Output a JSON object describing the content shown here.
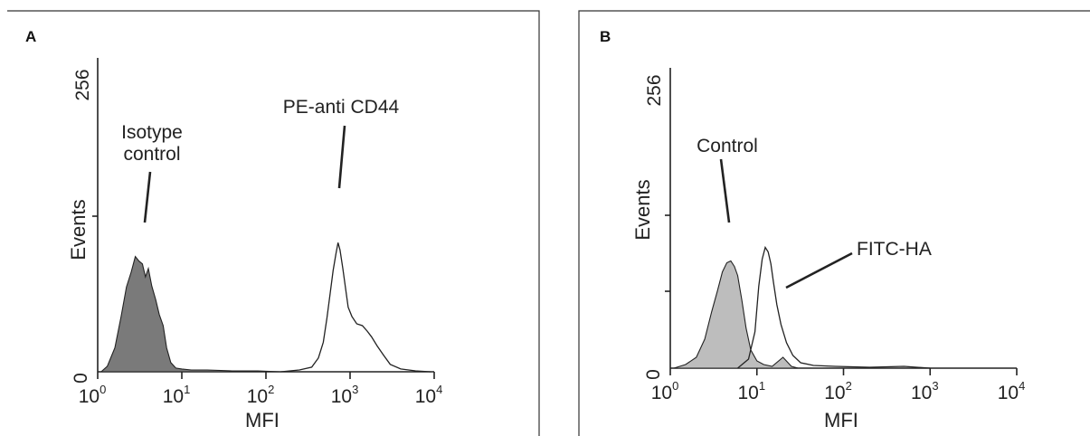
{
  "chart_data": [
    {
      "type": "area",
      "panel": "A",
      "xlabel": "MFI",
      "ylabel": "Events",
      "xscale": "log",
      "xlim": [
        1,
        10000
      ],
      "ylim": [
        0,
        256
      ],
      "ytick_labels": [
        "0",
        "256"
      ],
      "xtick_labels": [
        {
          "base": "10",
          "exp": "0",
          "value": 1
        },
        {
          "base": "10",
          "exp": "1",
          "value": 10
        },
        {
          "base": "10",
          "exp": "2",
          "value": 100
        },
        {
          "base": "10",
          "exp": "3",
          "value": 1000
        },
        {
          "base": "10",
          "exp": "4",
          "value": 10000
        }
      ],
      "series": [
        {
          "name": "Isotype control",
          "fill": "#7a7a7a",
          "filled": true,
          "x": [
            1.1,
            1.3,
            1.6,
            1.9,
            2.2,
            2.5,
            2.8,
            3.1,
            3.4,
            3.7,
            4.0,
            4.4,
            4.9,
            5.4,
            6.0,
            6.6,
            7.4,
            8.5,
            10,
            13,
            20,
            40,
            80,
            150
          ],
          "y": [
            0,
            6,
            26,
            60,
            92,
            108,
            125,
            120,
            117,
            103,
            112,
            93,
            78,
            62,
            50,
            26,
            10,
            4,
            3,
            2,
            2,
            1,
            1,
            0
          ]
        },
        {
          "name": "PE-anti CD44",
          "fill": "none",
          "filled": false,
          "x": [
            150,
            250,
            350,
            420,
            480,
            530,
            580,
            630,
            680,
            720,
            760,
            820,
            880,
            950,
            1050,
            1200,
            1400,
            1600,
            1800,
            2100,
            2500,
            3000,
            4000,
            6000,
            9000
          ],
          "y": [
            0,
            2,
            5,
            15,
            32,
            58,
            85,
            110,
            128,
            140,
            132,
            112,
            92,
            70,
            60,
            52,
            50,
            44,
            38,
            28,
            18,
            8,
            3,
            1,
            0
          ]
        }
      ],
      "annotations": [
        {
          "lines": [
            "Isotype",
            "control"
          ],
          "target": "Isotype control"
        },
        {
          "lines": [
            "PE-anti CD44"
          ],
          "target": "PE-anti CD44"
        }
      ]
    },
    {
      "type": "area",
      "panel": "B",
      "xlabel": "MFI",
      "ylabel": "Events",
      "xscale": "log",
      "xlim": [
        1,
        10000
      ],
      "ylim": [
        0,
        256
      ],
      "ytick_labels": [
        "0",
        "256"
      ],
      "xtick_labels": [
        {
          "base": "10",
          "exp": "0",
          "value": 1
        },
        {
          "base": "10",
          "exp": "1",
          "value": 10
        },
        {
          "base": "10",
          "exp": "2",
          "value": 100
        },
        {
          "base": "10",
          "exp": "3",
          "value": 1000
        },
        {
          "base": "10",
          "exp": "4",
          "value": 10000
        }
      ],
      "series": [
        {
          "name": "Control",
          "fill": "#bdbdbd",
          "filled": true,
          "x": [
            1.1,
            1.5,
            2.0,
            2.5,
            3.0,
            3.5,
            4.0,
            4.5,
            5.0,
            5.5,
            6.0,
            6.7,
            7.5,
            8.5,
            10,
            12,
            15,
            20,
            25,
            30
          ],
          "y": [
            0,
            4,
            12,
            32,
            62,
            85,
            106,
            116,
            118,
            112,
            102,
            75,
            44,
            20,
            8,
            4,
            2,
            12,
            2,
            0
          ]
        },
        {
          "name": "FITC-HA",
          "fill": "none",
          "filled": false,
          "x": [
            6,
            8,
            9.5,
            10.5,
            11.5,
            12.5,
            13.5,
            14.5,
            15.5,
            17,
            19,
            22,
            26,
            32,
            45,
            80,
            200,
            500,
            1000
          ],
          "y": [
            0,
            10,
            40,
            90,
            120,
            133,
            128,
            115,
            95,
            70,
            48,
            28,
            14,
            6,
            3,
            2,
            1,
            2,
            0
          ]
        }
      ],
      "annotations": [
        {
          "lines": [
            "Control"
          ],
          "target": "Control"
        },
        {
          "lines": [
            "FITC-HA"
          ],
          "target": "FITC-HA"
        }
      ]
    }
  ]
}
